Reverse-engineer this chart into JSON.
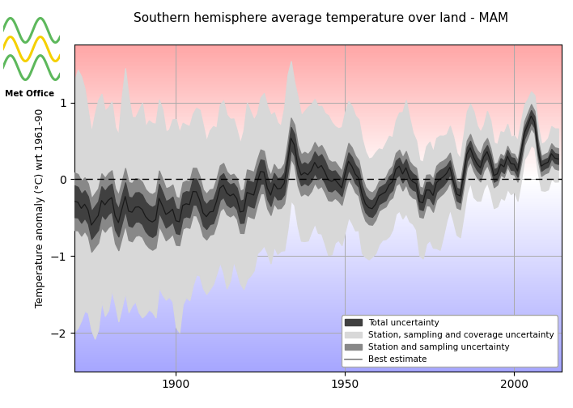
{
  "title": "Southern hemisphere average temperature over land - MAM",
  "ylabel": "Temperature anomaly (°C) wrt 1961-90",
  "xlim": [
    1870,
    2014
  ],
  "ylim": [
    -2.5,
    1.75
  ],
  "yticks": [
    -2,
    -1,
    0,
    1
  ],
  "xticks": [
    1900,
    1950,
    2000
  ],
  "zero_line_color": "black",
  "grid_color": "#aaaaaa",
  "total_unc_color": "#404040",
  "station_sampling_cov_color": "#d8d8d8",
  "station_sampling_color": "#888888",
  "best_estimate_color": "#1a1a1a",
  "legend_labels": [
    "Total uncertainty",
    "Station, sampling and coverage uncertainty",
    "Station and sampling uncertainty",
    "Best estimate"
  ],
  "logo_colors": [
    "#5db85c",
    "#f5d000",
    "#5db85c"
  ]
}
